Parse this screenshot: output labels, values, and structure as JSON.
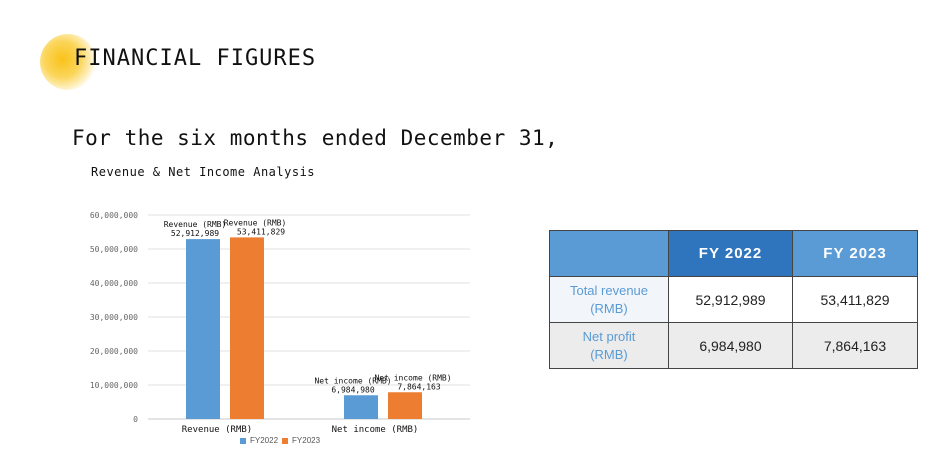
{
  "header": {
    "title": "FINANCIAL FIGURES",
    "subtitle": "For the six months ended December 31,"
  },
  "colors": {
    "fy2022": "#5b9bd5",
    "fy2023": "#ed7d31",
    "accent_glow": "#f9c21a",
    "table_header": "#2f75bd",
    "table_header_light": "#5a9bd5"
  },
  "chart_data": {
    "type": "bar",
    "title": "Revenue & Net Income Analysis",
    "categories": [
      "Revenue (RMB)",
      "Net income (RMB)"
    ],
    "series": [
      {
        "name": "FY2022",
        "values": [
          52912989,
          6984980
        ],
        "labels": [
          "Revenue (RMB)\n52,912,989",
          "Net income (RMB)\n6,984,980"
        ]
      },
      {
        "name": "FY2023",
        "values": [
          53411829,
          7864163
        ],
        "labels": [
          "Revenue (RMB)\n53,411,829",
          "Net income (RMB)\n7,864,163"
        ]
      }
    ],
    "data_labels": [
      [
        "Revenue (RMB)",
        "52,912,989",
        "Net income (RMB)",
        "6,984,980"
      ],
      [
        "Revenue (RMB)",
        "53,411,829",
        "Net income (RMB)",
        "7,864,163"
      ]
    ],
    "yticks": [
      "0",
      "10,000,000",
      "20,000,000",
      "30,000,000",
      "40,000,000",
      "50,000,000",
      "60,000,000"
    ],
    "ylim": [
      0,
      60000000
    ],
    "grid": true,
    "legend": "bottom"
  },
  "table": {
    "headers": [
      "",
      "FY 2022",
      "FY 2023"
    ],
    "rows": [
      {
        "label_line1": "Total revenue",
        "label_line2": "(RMB)",
        "fy2022": "52,912,989",
        "fy2023": "53,411,829"
      },
      {
        "label_line1": "Net profit",
        "label_line2": "(RMB)",
        "fy2022": "6,984,980",
        "fy2023": "7,864,163"
      }
    ]
  }
}
